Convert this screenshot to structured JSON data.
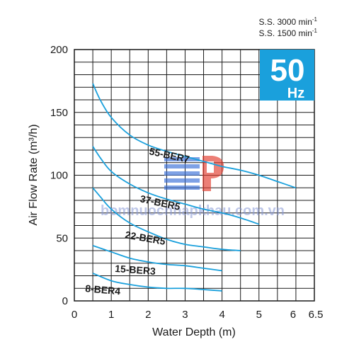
{
  "speed_notes": [
    {
      "prefix": "S.S. 3000 min",
      "sup": "-1"
    },
    {
      "prefix": "S.S. 1500 min",
      "sup": "-1"
    }
  ],
  "frequency_badge": {
    "value": "50",
    "unit": "Hz",
    "color": "#1aa0dc"
  },
  "watermark": {
    "text": "bomnuocnhapkhau.com.vn",
    "color": "#8a9ad6",
    "logo_red": "#e23b2e",
    "logo_blue": "#3a6fd8"
  },
  "chart_data": {
    "type": "line",
    "xlabel": "Water Depth (m)",
    "ylabel": "Air Flow Rate (m³/h)",
    "xlim": [
      0,
      6.5
    ],
    "ylim": [
      0,
      200
    ],
    "x_ticks": [
      "0",
      "1",
      "2",
      "3",
      "4",
      "5",
      "6",
      "6.5"
    ],
    "x_tick_values": [
      0,
      1,
      2,
      3,
      4,
      5,
      6,
      6.5
    ],
    "y_ticks": [
      "0",
      "50",
      "100",
      "150",
      "200"
    ],
    "y_tick_values": [
      0,
      50,
      100,
      150,
      200
    ],
    "grid": true,
    "line_color": "#1aa0dc",
    "series": [
      {
        "name": "55-BER7",
        "points": [
          [
            0.5,
            173
          ],
          [
            0.7,
            160
          ],
          [
            1,
            146
          ],
          [
            1.5,
            132
          ],
          [
            2,
            124
          ],
          [
            2.5,
            119
          ],
          [
            3,
            115
          ],
          [
            3.5,
            111
          ],
          [
            4,
            107
          ],
          [
            4.5,
            104
          ],
          [
            5,
            100
          ],
          [
            5.5,
            95
          ],
          [
            6,
            90
          ]
        ]
      },
      {
        "name": "37-BER5",
        "points": [
          [
            0.5,
            123
          ],
          [
            0.7,
            114
          ],
          [
            1,
            103
          ],
          [
            1.5,
            93
          ],
          [
            2,
            86
          ],
          [
            2.5,
            81
          ],
          [
            3,
            77
          ],
          [
            3.5,
            73
          ],
          [
            4,
            70
          ],
          [
            4.5,
            66
          ],
          [
            5,
            61
          ]
        ]
      },
      {
        "name": "22-BER5",
        "points": [
          [
            0.5,
            90
          ],
          [
            0.7,
            83
          ],
          [
            1,
            73
          ],
          [
            1.5,
            62
          ],
          [
            2,
            55
          ],
          [
            2.5,
            49
          ],
          [
            3,
            45
          ],
          [
            3.5,
            43
          ],
          [
            4,
            41
          ],
          [
            4.5,
            40
          ]
        ]
      },
      {
        "name": "15-BER3",
        "points": [
          [
            0.5,
            44
          ],
          [
            1,
            39
          ],
          [
            1.5,
            34
          ],
          [
            2,
            31
          ],
          [
            2.5,
            29
          ],
          [
            3,
            28
          ],
          [
            3.5,
            26
          ],
          [
            4,
            24
          ]
        ]
      },
      {
        "name": "8-BER4",
        "points": [
          [
            0.5,
            22
          ],
          [
            1,
            16
          ],
          [
            1.5,
            13
          ],
          [
            2,
            11
          ],
          [
            2.5,
            10
          ],
          [
            3,
            10
          ],
          [
            3.5,
            9
          ],
          [
            4,
            8
          ]
        ]
      }
    ]
  }
}
